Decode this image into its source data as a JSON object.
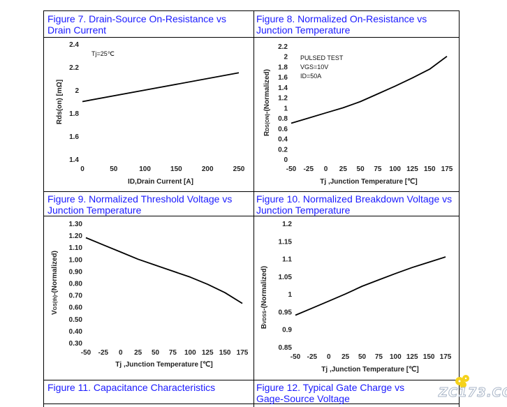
{
  "captions": {
    "fig7": "Figure 7. Drain-Source On-Resistance vs\nDrain Current",
    "fig8": "Figure 8. Normalized On-Resistance vs\nJunction Temperature",
    "fig9": "Figure 9. Normalized Threshold Voltage vs\nJunction Temperature",
    "fig10": "Figure 10. Normalized Breakdown Voltage vs\nJunction Temperature",
    "fig11": "Figure 11. Capacitance Characteristics",
    "fig12": "Figure 12. Typical Gate Charge vs\nGage-Source Voltage"
  },
  "watermark": "ZC173.COM",
  "chart_data": [
    {
      "id": "fig7",
      "type": "line",
      "title": "Figure 7. Drain-Source On-Resistance vs Drain Current",
      "xlabel": "ID,Drain Current [A]",
      "ylabel": "Rds(on) [mΩ]",
      "annotations": [
        "Tj=25℃"
      ],
      "xlim": [
        0,
        250
      ],
      "ylim": [
        1.4,
        2.4
      ],
      "xticks": [
        0,
        50,
        100,
        150,
        200,
        250
      ],
      "xtick_labels": [
        "0",
        "50",
        "100",
        "150",
        "200",
        "250"
      ],
      "yticks": [
        1.4,
        1.6,
        1.8,
        2,
        2.2,
        2.4
      ],
      "ytick_labels": [
        "1.4",
        "1.6",
        "1.8",
        "2",
        "2.2",
        "2.4"
      ],
      "x": [
        0,
        250
      ],
      "y": [
        1.9,
        2.15
      ],
      "grid": false
    },
    {
      "id": "fig8",
      "type": "line",
      "title": "Figure 8. Normalized On-Resistance vs Junction Temperature",
      "xlabel": "Tj ,Junction Temperature [℃]",
      "ylabel": "RDS(ON)-(Normalized)",
      "annotations": [
        "PULSED TEST",
        "VGS=10V",
        "ID=50A"
      ],
      "xlim": [
        -50,
        175
      ],
      "ylim": [
        0,
        2.2
      ],
      "xticks": [
        -50,
        -25,
        0,
        25,
        50,
        75,
        100,
        125,
        150,
        175
      ],
      "xtick_labels": [
        "-50",
        "-25",
        "0",
        "25",
        "50",
        "75",
        "100",
        "125",
        "150",
        "175"
      ],
      "yticks": [
        0,
        0.2,
        0.4,
        0.6,
        0.8,
        1,
        1.2,
        1.4,
        1.6,
        1.8,
        2,
        2.2
      ],
      "ytick_labels": [
        "0",
        "0.2",
        "0.4",
        "0.6",
        "0.8",
        "1",
        "1.2",
        "1.4",
        "1.6",
        "1.8",
        "2",
        "2.2"
      ],
      "x": [
        -50,
        -25,
        0,
        25,
        50,
        75,
        100,
        125,
        150,
        175
      ],
      "y": [
        0.7,
        0.8,
        0.9,
        1.0,
        1.12,
        1.27,
        1.42,
        1.58,
        1.75,
        2.0
      ],
      "grid": false
    },
    {
      "id": "fig9",
      "type": "line",
      "title": "Figure 9. Normalized Threshold Voltage vs Junction Temperature",
      "xlabel": "Tj ,Junction Temperature [℃]",
      "ylabel": "VGS(th)-(Normalized)",
      "xlim": [
        -50,
        175
      ],
      "ylim": [
        0.3,
        1.3
      ],
      "xticks": [
        -50,
        -25,
        0,
        25,
        50,
        75,
        100,
        125,
        150,
        175
      ],
      "xtick_labels": [
        "-50",
        "-25",
        "0",
        "25",
        "50",
        "75",
        "100",
        "125",
        "150",
        "175"
      ],
      "yticks": [
        0.3,
        0.4,
        0.5,
        0.6,
        0.7,
        0.8,
        0.9,
        1.0,
        1.1,
        1.2,
        1.3
      ],
      "ytick_labels": [
        "0.30",
        "0.40",
        "0.50",
        "0.60",
        "0.70",
        "0.80",
        "0.90",
        "1.00",
        "1.10",
        "1.20",
        "1.30"
      ],
      "x": [
        -50,
        -25,
        0,
        25,
        50,
        75,
        100,
        125,
        150,
        175
      ],
      "y": [
        1.18,
        1.12,
        1.06,
        1.0,
        0.95,
        0.9,
        0.85,
        0.79,
        0.72,
        0.63
      ],
      "grid": false
    },
    {
      "id": "fig10",
      "type": "line",
      "title": "Figure 10. Normalized Breakdown Voltage vs Junction Temperature",
      "xlabel": "Tj ,Junction Temperature [℃]",
      "ylabel": "BVDSS-(Normalized)",
      "xlim": [
        -50,
        175
      ],
      "ylim": [
        0.85,
        1.2
      ],
      "xticks": [
        -50,
        -25,
        0,
        25,
        50,
        75,
        100,
        125,
        150,
        175
      ],
      "xtick_labels": [
        "-50",
        "-25",
        "0",
        "25",
        "50",
        "75",
        "100",
        "125",
        "150",
        "175"
      ],
      "yticks": [
        0.85,
        0.9,
        0.95,
        1,
        1.05,
        1.1,
        1.15,
        1.2
      ],
      "ytick_labels": [
        "0.85",
        "0.9",
        "0.95",
        "1",
        "1.05",
        "1.1",
        "1.15",
        "1.2"
      ],
      "x": [
        -50,
        -25,
        0,
        25,
        50,
        75,
        100,
        125,
        150,
        175
      ],
      "y": [
        0.94,
        0.96,
        0.98,
        1.0,
        1.022,
        1.04,
        1.058,
        1.075,
        1.09,
        1.105
      ],
      "grid": false
    }
  ]
}
